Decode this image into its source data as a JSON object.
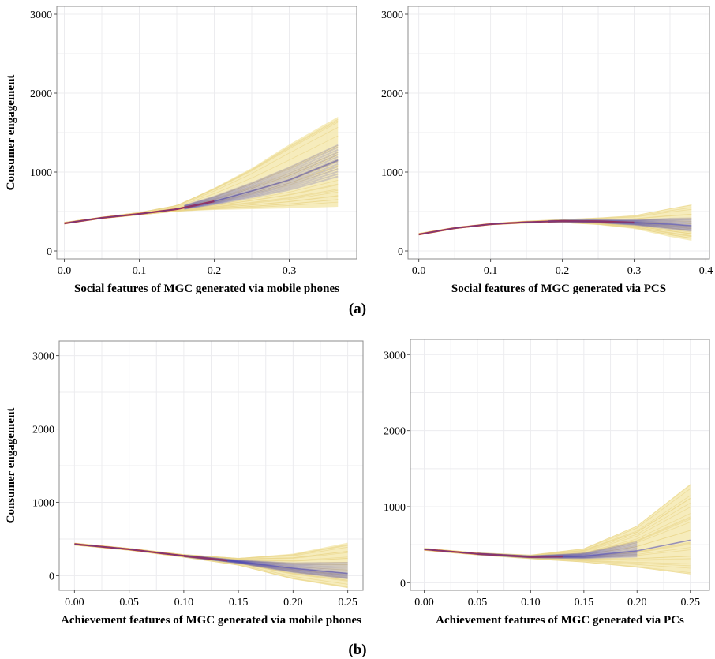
{
  "figure": {
    "panel_labels": [
      "(a)",
      "(b)"
    ]
  },
  "colors": {
    "band": "#f3e5a6",
    "band_lines": "#e9d68a",
    "posterior": "#4b45b5",
    "mean": "#c0262b",
    "grid": "#ececef",
    "frame": "#8c8c8c"
  },
  "chart_data": [
    {
      "type": "line",
      "panel": "(a) left",
      "xlabel": "Social features of MGC generated via mobile phones",
      "ylabel": "Consumer engagement",
      "xlim": [
        -0.01,
        0.39
      ],
      "ylim": [
        -100,
        3100
      ],
      "xticks": [
        0.0,
        0.1,
        0.2,
        0.3
      ],
      "xtick_labels": [
        "0.0",
        "0.1",
        "0.2",
        "0.3"
      ],
      "yticks": [
        0,
        1000,
        2000,
        3000
      ],
      "ytick_labels": [
        "0",
        "1000",
        "2000",
        "3000"
      ],
      "grid": true,
      "series": [
        {
          "x": [
            0.0,
            0.05,
            0.1,
            0.15,
            0.2,
            0.25,
            0.3,
            0.365
          ],
          "values": [
            350,
            420,
            470,
            530,
            630,
            760,
            900,
            1150
          ]
        }
      ],
      "band_upper": [
        365,
        430,
        490,
        580,
        800,
        1050,
        1350,
        1700
      ],
      "band_lower": [
        340,
        410,
        455,
        500,
        520,
        530,
        540,
        560
      ],
      "posterior_range": [
        0.16,
        0.365
      ],
      "mean_range": [
        0.0,
        0.2
      ]
    },
    {
      "type": "line",
      "panel": "(a) right",
      "xlabel": "Social features of MGC generated via PCS",
      "ylabel": "",
      "xlim": [
        -0.015,
        0.405
      ],
      "ylim": [
        -100,
        3100
      ],
      "xticks": [
        0.0,
        0.1,
        0.2,
        0.3,
        0.4
      ],
      "xtick_labels": [
        "0.0",
        "0.1",
        "0.2",
        "0.3",
        "0.4"
      ],
      "yticks": [
        0,
        1000,
        2000,
        3000
      ],
      "ytick_labels": [
        "0",
        "1000",
        "2000",
        "3000"
      ],
      "grid": true,
      "series": [
        {
          "x": [
            0.0,
            0.05,
            0.1,
            0.15,
            0.2,
            0.25,
            0.3,
            0.35,
            0.38
          ],
          "values": [
            210,
            290,
            340,
            365,
            380,
            375,
            360,
            340,
            320
          ]
        }
      ],
      "band_upper": [
        225,
        300,
        350,
        380,
        400,
        420,
        450,
        540,
        590
      ],
      "band_lower": [
        200,
        280,
        330,
        350,
        355,
        330,
        280,
        180,
        130
      ],
      "posterior_range": [
        0.18,
        0.38
      ],
      "mean_range": [
        0.0,
        0.3
      ]
    },
    {
      "type": "line",
      "panel": "(b) left",
      "xlabel": "Achievement features of MGC generated via mobile phones",
      "ylabel": "Consumer engagement",
      "xlim": [
        -0.014,
        0.264
      ],
      "ylim": [
        -200,
        3200
      ],
      "xticks": [
        0.0,
        0.05,
        0.1,
        0.15,
        0.2,
        0.25
      ],
      "xtick_labels": [
        "0.00",
        "0.05",
        "0.10",
        "0.15",
        "0.20",
        "0.25"
      ],
      "yticks": [
        0,
        1000,
        2000,
        3000
      ],
      "ytick_labels": [
        "0",
        "1000",
        "2000",
        "3000"
      ],
      "grid": true,
      "series": [
        {
          "x": [
            0.0,
            0.05,
            0.1,
            0.15,
            0.2,
            0.25
          ],
          "values": [
            430,
            360,
            270,
            190,
            100,
            30
          ]
        }
      ],
      "band_upper": [
        445,
        375,
        290,
        240,
        300,
        450
      ],
      "band_lower": [
        415,
        345,
        250,
        140,
        -50,
        -170
      ],
      "posterior_range": [
        0.1,
        0.25
      ],
      "mean_range": [
        0.0,
        0.14
      ]
    },
    {
      "type": "line",
      "panel": "(b) right",
      "xlabel": "Achievement features of MGC generated via PCs",
      "ylabel": "",
      "xlim": [
        -0.013,
        0.268
      ],
      "ylim": [
        -100,
        3200
      ],
      "xticks": [
        0.0,
        0.05,
        0.1,
        0.15,
        0.2,
        0.25
      ],
      "xtick_labels": [
        "0.00",
        "0.05",
        "0.10",
        "0.15",
        "0.20",
        "0.25"
      ],
      "yticks": [
        0,
        1000,
        2000,
        3000
      ],
      "ytick_labels": [
        "0",
        "1000",
        "2000",
        "3000"
      ],
      "grid": true,
      "series": [
        {
          "x": [
            0.0,
            0.05,
            0.1,
            0.15,
            0.2,
            0.25
          ],
          "values": [
            440,
            380,
            340,
            350,
            420,
            560
          ]
        }
      ],
      "band_upper": [
        455,
        395,
        365,
        450,
        750,
        1300
      ],
      "band_lower": [
        425,
        365,
        315,
        270,
        200,
        110
      ],
      "posterior_range": [
        0.05,
        0.2
      ],
      "mean_range": [
        0.0,
        0.13
      ]
    }
  ]
}
